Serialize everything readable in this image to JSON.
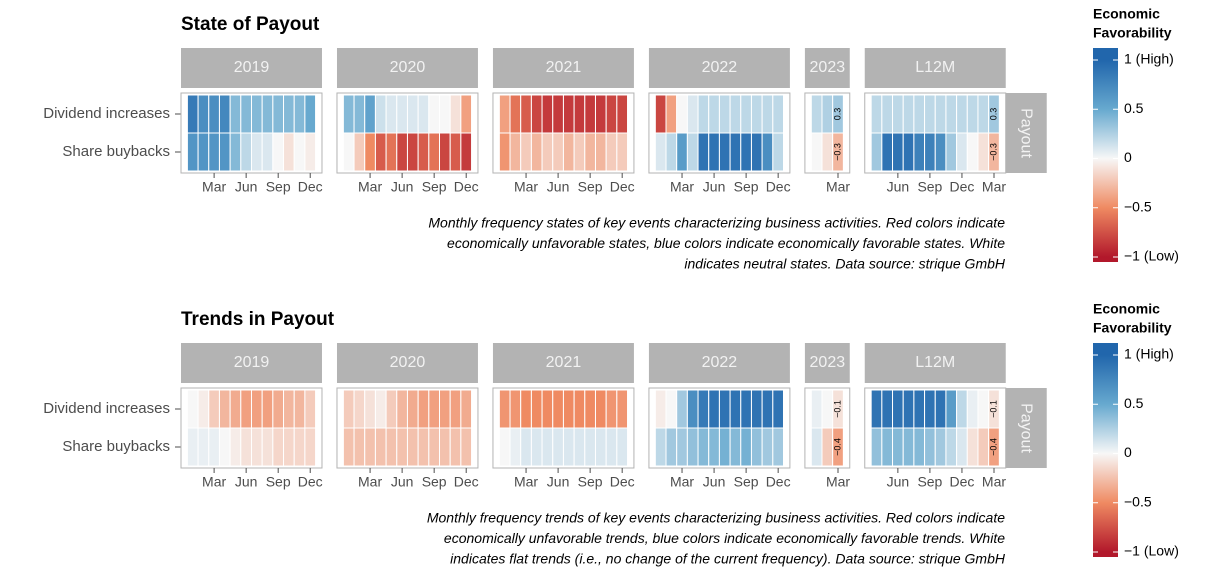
{
  "chart_data": [
    {
      "type": "heatmap",
      "title": "State of Payout",
      "rows": [
        "Dividend increases",
        "Share buybacks"
      ],
      "row_strip": "Payout",
      "facets": [
        {
          "label": "2019",
          "xticks": [
            {
              "value": 3,
              "label": "Mar"
            },
            {
              "value": 6,
              "label": "Jun"
            },
            {
              "value": 9,
              "label": "Sep"
            },
            {
              "value": 12,
              "label": "Dec"
            }
          ],
          "values": [
            [
              0.85,
              0.7,
              0.7,
              0.75,
              0.4,
              0.4,
              0.4,
              0.4,
              0.4,
              0.4,
              0.4,
              0.5
            ],
            [
              0.65,
              0.65,
              0.65,
              0.65,
              0.4,
              0.2,
              0.1,
              0.1,
              0,
              -0.1,
              0,
              -0.05
            ]
          ]
        },
        {
          "label": "2020",
          "xticks": [
            {
              "value": 3,
              "label": "Mar"
            },
            {
              "value": 6,
              "label": "Jun"
            },
            {
              "value": 9,
              "label": "Sep"
            },
            {
              "value": 12,
              "label": "Dec"
            }
          ],
          "values": [
            [
              0.4,
              0.4,
              0.55,
              0.15,
              0.1,
              0.1,
              0.1,
              0.1,
              0,
              0,
              -0.1,
              -0.4
            ],
            [
              0,
              -0.2,
              -0.5,
              -0.7,
              -0.6,
              -0.8,
              -0.8,
              -0.7,
              -0.6,
              -0.8,
              -0.7,
              -0.85
            ]
          ]
        },
        {
          "label": "2021",
          "xticks": [
            {
              "value": 3,
              "label": "Mar"
            },
            {
              "value": 6,
              "label": "Jun"
            },
            {
              "value": 9,
              "label": "Sep"
            },
            {
              "value": 12,
              "label": "Dec"
            }
          ],
          "values": [
            [
              -0.4,
              -0.6,
              -0.7,
              -0.8,
              -0.85,
              -0.85,
              -0.85,
              -0.85,
              -0.85,
              -0.85,
              -0.8,
              -0.8
            ],
            [
              -0.45,
              -0.3,
              -0.2,
              -0.3,
              -0.2,
              -0.2,
              -0.3,
              -0.2,
              -0.3,
              -0.3,
              -0.2,
              -0.2
            ]
          ]
        },
        {
          "label": "2022",
          "xticks": [
            {
              "value": 3,
              "label": "Mar"
            },
            {
              "value": 6,
              "label": "Jun"
            },
            {
              "value": 9,
              "label": "Sep"
            },
            {
              "value": 12,
              "label": "Dec"
            }
          ],
          "values": [
            [
              -0.8,
              -0.4,
              0,
              0.1,
              0.2,
              0.2,
              0.2,
              0.2,
              0.2,
              0.2,
              0.2,
              0.2
            ],
            [
              0.1,
              0.2,
              0.6,
              0.2,
              0.9,
              0.9,
              0.9,
              0.9,
              0.9,
              0.9,
              0.7,
              0.2
            ]
          ]
        },
        {
          "label": "2023",
          "xticks": [
            {
              "value": 3,
              "label": "Mar"
            }
          ],
          "values": [
            [
              0.2,
              0.25,
              0.3
            ],
            [
              0,
              -0.1,
              -0.3
            ]
          ],
          "value_labels": [
            [
              null,
              null,
              "0.3"
            ],
            [
              null,
              null,
              "−0.3"
            ]
          ]
        },
        {
          "label": "L12M",
          "xticks": [
            {
              "value": 3,
              "label": "Jun"
            },
            {
              "value": 6,
              "label": "Sep"
            },
            {
              "value": 9,
              "label": "Dec"
            },
            {
              "value": 12,
              "label": "Mar"
            }
          ],
          "values": [
            [
              0.2,
              0.2,
              0.2,
              0.2,
              0.2,
              0.2,
              0.2,
              0.2,
              0.2,
              0.2,
              0.2,
              0.3
            ],
            [
              0.3,
              0.9,
              0.9,
              0.9,
              0.8,
              0.8,
              0.7,
              0.3,
              0.1,
              0,
              -0.1,
              -0.3
            ]
          ],
          "value_labels": [
            [
              null,
              null,
              null,
              null,
              null,
              null,
              null,
              null,
              null,
              null,
              null,
              "0.3"
            ],
            [
              null,
              null,
              null,
              null,
              null,
              null,
              null,
              null,
              null,
              null,
              null,
              "−0.3"
            ]
          ]
        }
      ],
      "caption": [
        "Monthly frequency states of key events characterizing business activities. Red colors indicate",
        "economically unfavorable states, blue colors indicate economically favorable states. White",
        "indicates neutral states. Data source: strique GmbH"
      ],
      "legend": {
        "title": [
          "Economic",
          "Favorability"
        ],
        "lim": [
          -1,
          1
        ],
        "colors": [
          "#b2182b",
          "#ef8a62",
          "#f7f7f7",
          "#67a9cf",
          "#2166ac"
        ],
        "ticks": [
          {
            "value": 1,
            "label": "1 (High)"
          },
          0.5,
          0,
          {
            "value": -0.5,
            "label": "−0.5"
          },
          {
            "value": -1,
            "label": "−1 (Low)"
          }
        ]
      }
    },
    {
      "type": "heatmap",
      "title": "Trends in Payout",
      "rows": [
        "Dividend increases",
        "Share buybacks"
      ],
      "row_strip": "Payout",
      "facets": [
        {
          "label": "2019",
          "xticks": [
            {
              "value": 3,
              "label": "Mar"
            },
            {
              "value": 6,
              "label": "Jun"
            },
            {
              "value": 9,
              "label": "Sep"
            },
            {
              "value": 12,
              "label": "Dec"
            }
          ],
          "values": [
            [
              0,
              -0.05,
              -0.2,
              -0.3,
              -0.35,
              -0.4,
              -0.4,
              -0.4,
              -0.35,
              -0.3,
              -0.3,
              -0.2
            ],
            [
              0.05,
              0.05,
              0.05,
              0,
              -0.05,
              -0.1,
              -0.1,
              -0.1,
              -0.15,
              -0.15,
              -0.15,
              -0.15
            ]
          ]
        },
        {
          "label": "2020",
          "xticks": [
            {
              "value": 3,
              "label": "Mar"
            },
            {
              "value": 6,
              "label": "Jun"
            },
            {
              "value": 9,
              "label": "Sep"
            },
            {
              "value": 12,
              "label": "Dec"
            }
          ],
          "values": [
            [
              -0.2,
              -0.15,
              -0.1,
              -0.05,
              -0.2,
              -0.3,
              -0.35,
              -0.4,
              -0.4,
              -0.4,
              -0.4,
              -0.35
            ],
            [
              -0.25,
              -0.25,
              -0.25,
              -0.25,
              -0.25,
              -0.25,
              -0.25,
              -0.25,
              -0.25,
              -0.25,
              -0.25,
              -0.25
            ]
          ]
        },
        {
          "label": "2021",
          "xticks": [
            {
              "value": 3,
              "label": "Mar"
            },
            {
              "value": 6,
              "label": "Jun"
            },
            {
              "value": 9,
              "label": "Sep"
            },
            {
              "value": 12,
              "label": "Dec"
            }
          ],
          "values": [
            [
              -0.45,
              -0.45,
              -0.5,
              -0.5,
              -0.5,
              -0.5,
              -0.5,
              -0.5,
              -0.5,
              -0.5,
              -0.45,
              -0.45
            ],
            [
              0,
              0.05,
              0.1,
              0.1,
              0.1,
              0.1,
              0.1,
              0.1,
              0.1,
              0.1,
              0.1,
              0.1
            ]
          ]
        },
        {
          "label": "2022",
          "xticks": [
            {
              "value": 3,
              "label": "Mar"
            },
            {
              "value": 6,
              "label": "Jun"
            },
            {
              "value": 9,
              "label": "Sep"
            },
            {
              "value": 12,
              "label": "Dec"
            }
          ],
          "values": [
            [
              -0.05,
              0,
              0.3,
              0.7,
              0.85,
              0.9,
              0.9,
              0.9,
              0.9,
              0.9,
              0.9,
              0.9
            ],
            [
              0.2,
              0.3,
              0.3,
              0.35,
              0.4,
              0.4,
              0.45,
              0.4,
              0.45,
              0.35,
              0.3,
              0.3
            ]
          ]
        },
        {
          "label": "2023",
          "xticks": [
            {
              "value": 3,
              "label": "Mar"
            }
          ],
          "values": [
            [
              0.05,
              0,
              -0.1
            ],
            [
              0.1,
              -0.2,
              -0.4
            ]
          ],
          "value_labels": [
            [
              null,
              null,
              "−0.1"
            ],
            [
              null,
              null,
              "−0.4"
            ]
          ]
        },
        {
          "label": "L12M",
          "xticks": [
            {
              "value": 3,
              "label": "Jun"
            },
            {
              "value": 6,
              "label": "Sep"
            },
            {
              "value": 9,
              "label": "Dec"
            },
            {
              "value": 12,
              "label": "Mar"
            }
          ],
          "values": [
            [
              0.9,
              0.9,
              0.9,
              0.9,
              0.9,
              0.9,
              0.9,
              0.6,
              0.2,
              0.05,
              0,
              -0.1
            ],
            [
              0.35,
              0.4,
              0.4,
              0.4,
              0.4,
              0.35,
              0.3,
              0.2,
              0.1,
              -0.1,
              -0.2,
              -0.4
            ]
          ],
          "value_labels": [
            [
              null,
              null,
              null,
              null,
              null,
              null,
              null,
              null,
              null,
              null,
              null,
              "−0.1"
            ],
            [
              null,
              null,
              null,
              null,
              null,
              null,
              null,
              null,
              null,
              null,
              null,
              "−0.4"
            ]
          ]
        }
      ],
      "caption": [
        "Monthly frequency trends of key events characterizing business activities. Red colors indicate",
        "economically unfavorable trends, blue colors indicate economically favorable trends. White",
        "indicates flat trends (i.e., no change of the current frequency). Data source: strique GmbH"
      ],
      "legend": {
        "title": [
          "Economic",
          "Favorability"
        ],
        "lim": [
          -1,
          1
        ],
        "colors": [
          "#b2182b",
          "#ef8a62",
          "#f7f7f7",
          "#67a9cf",
          "#2166ac"
        ],
        "ticks": [
          {
            "value": 1,
            "label": "1 (High)"
          },
          0.5,
          0,
          {
            "value": -0.5,
            "label": "−0.5"
          },
          {
            "value": -1,
            "label": "−1 (Low)"
          }
        ]
      }
    }
  ]
}
